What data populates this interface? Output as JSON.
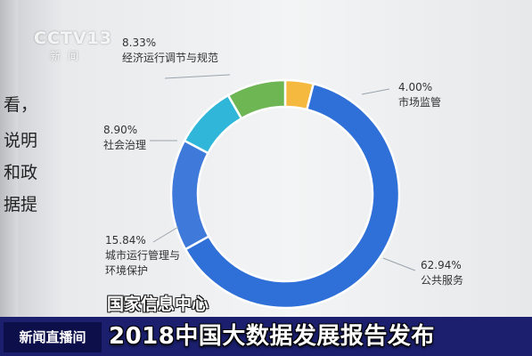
{
  "logo": {
    "main": "CCTV13",
    "sub": "新闻"
  },
  "side_text": [
    "看，",
    "说明",
    "和政",
    "据提"
  ],
  "source_caption": "国家信息中心",
  "ticker": {
    "program": "新闻直播间",
    "headline": "2018中国大数据发展报告发布"
  },
  "colors": {
    "ticker_bg": "#1b1f6e",
    "program_bg": "#0c0f4a"
  },
  "chart_data": {
    "type": "pie",
    "variant": "donut",
    "slices": [
      {
        "label": "市场监管",
        "value": 4.0,
        "display": "4.00%",
        "color": "#f5b93f"
      },
      {
        "label": "公共服务",
        "value": 62.94,
        "display": "62.94%",
        "color": "#2f6fd8"
      },
      {
        "label": "城市运行管理与环境保护",
        "label_lines": [
          "城市运行管理与",
          "环境保护"
        ],
        "value": 15.84,
        "display": "15.84%",
        "color": "#3f79d9"
      },
      {
        "label": "社会治理",
        "value": 8.9,
        "display": "8.90%",
        "color": "#30b6d8"
      },
      {
        "label": "经济运行调节与规范",
        "value": 8.33,
        "display": "8.33%",
        "color": "#6eb554"
      }
    ]
  }
}
